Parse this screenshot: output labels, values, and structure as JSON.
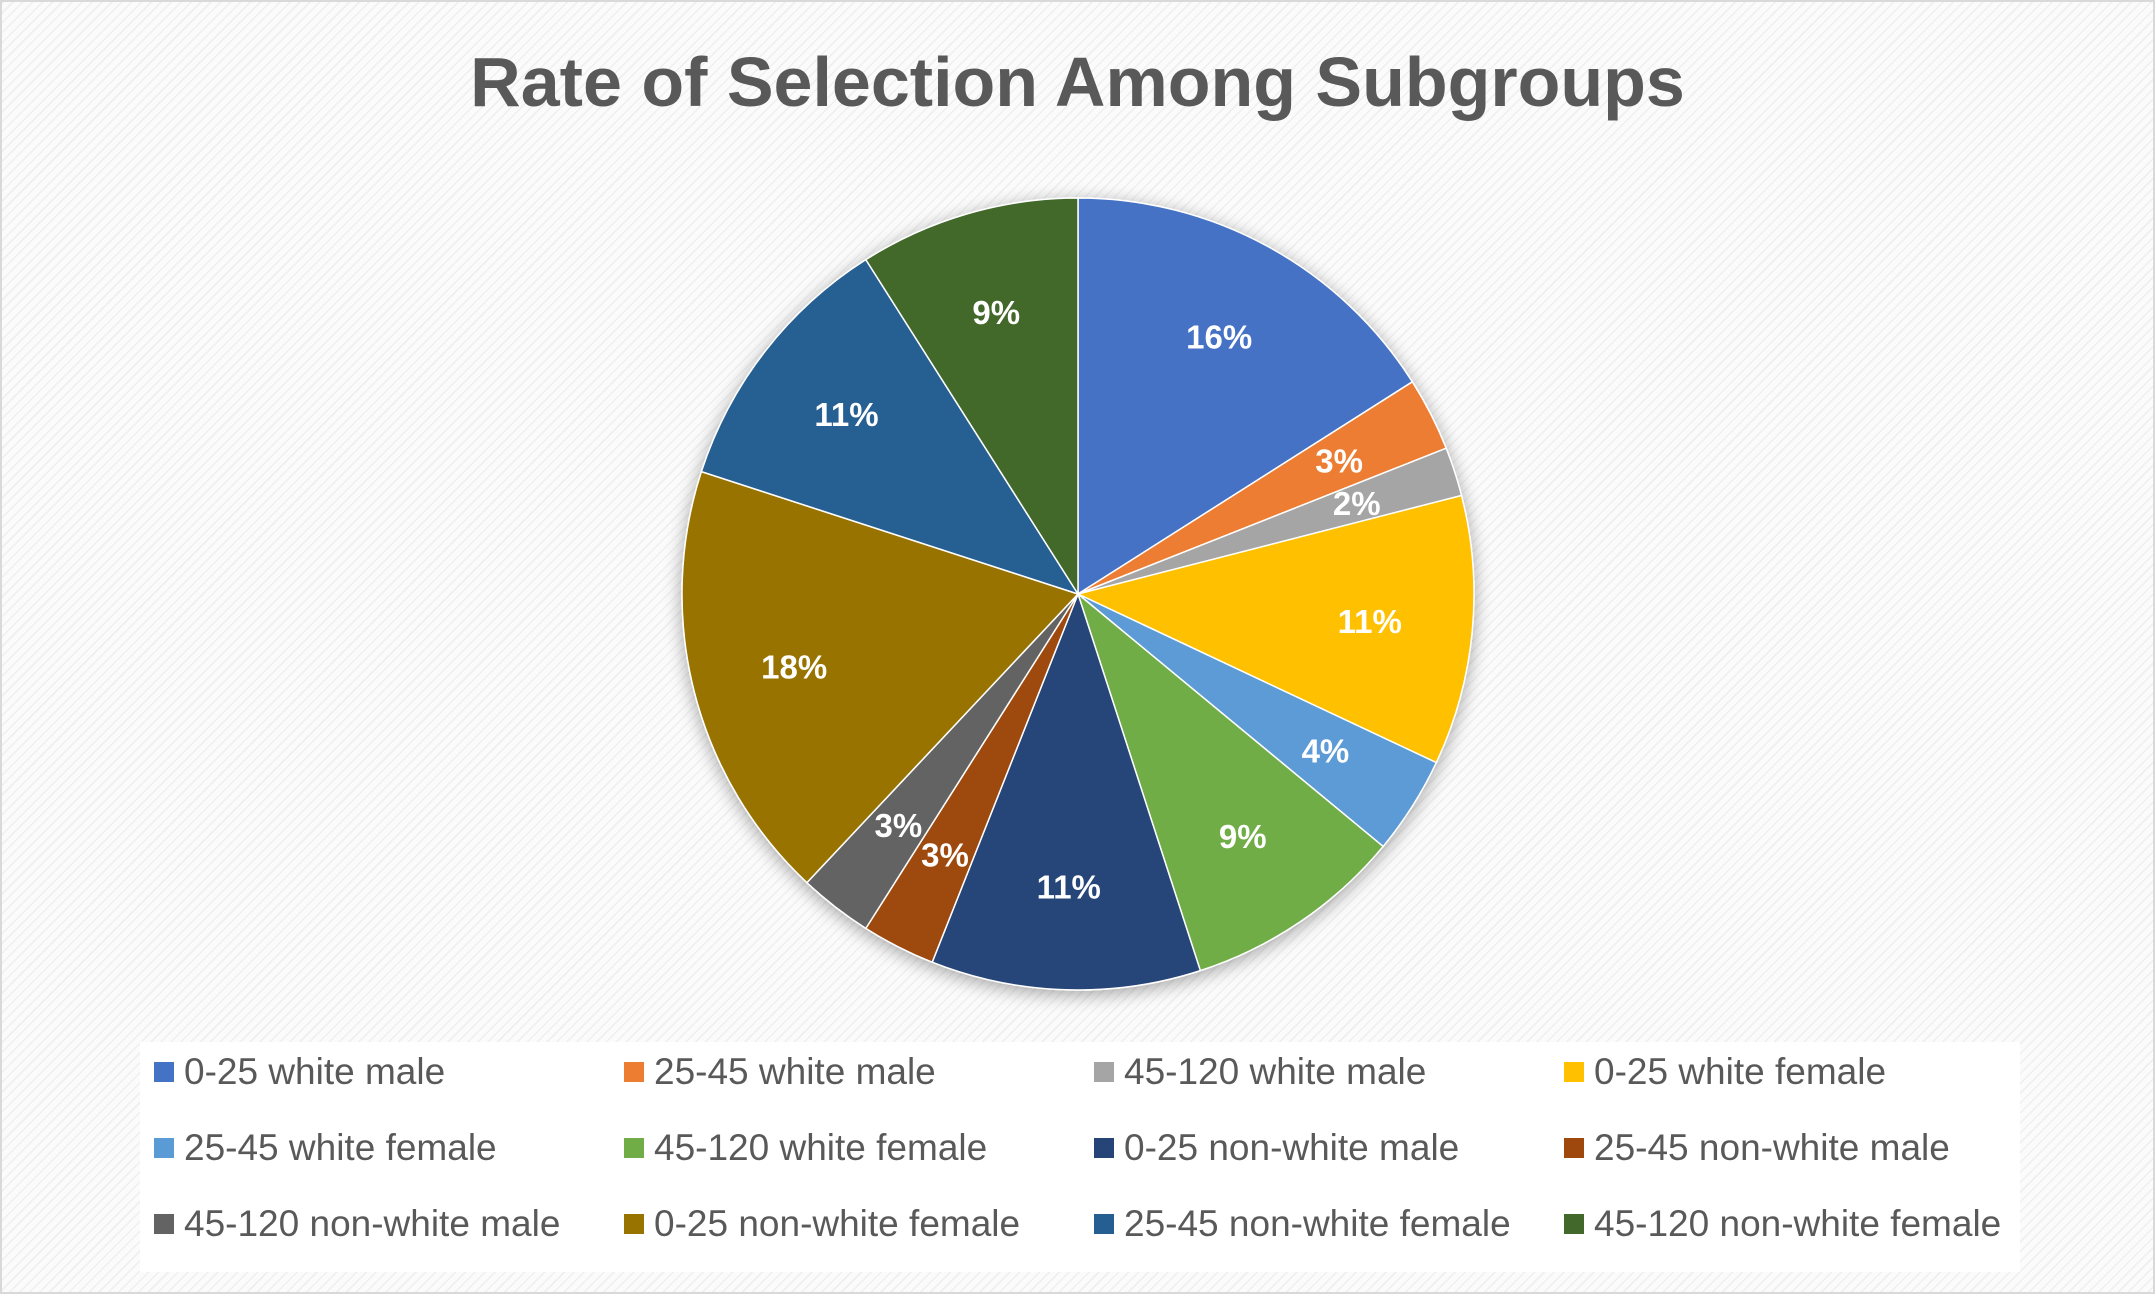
{
  "chart_data": {
    "type": "pie",
    "title": "Rate of Selection Among Subgroups",
    "legend_position": "bottom",
    "slices": [
      {
        "label": "0-25 white male",
        "value": 16,
        "display": "16%",
        "color": "#4472C4"
      },
      {
        "label": "25-45 white male",
        "value": 3,
        "display": "3%",
        "color": "#ED7D31"
      },
      {
        "label": "45-120 white male",
        "value": 2,
        "display": "2%",
        "color": "#A5A5A5"
      },
      {
        "label": "0-25 white female",
        "value": 11,
        "display": "11%",
        "color": "#FFC000"
      },
      {
        "label": "25-45 white female",
        "value": 4,
        "display": "4%",
        "color": "#5B9BD5"
      },
      {
        "label": "45-120 white female",
        "value": 9,
        "display": "9%",
        "color": "#70AD47"
      },
      {
        "label": "0-25 non-white male",
        "value": 11,
        "display": "11%",
        "color": "#264478"
      },
      {
        "label": "25-45 non-white male",
        "value": 3,
        "display": "3%",
        "color": "#9E480E"
      },
      {
        "label": "45-120 non-white male",
        "value": 3,
        "display": "3%",
        "color": "#636363"
      },
      {
        "label": "0-25 non-white female",
        "value": 18,
        "display": "18%",
        "color": "#997300"
      },
      {
        "label": "25-45 non-white female",
        "value": 11,
        "display": "11%",
        "color": "#255E91"
      },
      {
        "label": "45-120 non-white female",
        "value": 9,
        "display": "9%",
        "color": "#43682B"
      }
    ]
  }
}
